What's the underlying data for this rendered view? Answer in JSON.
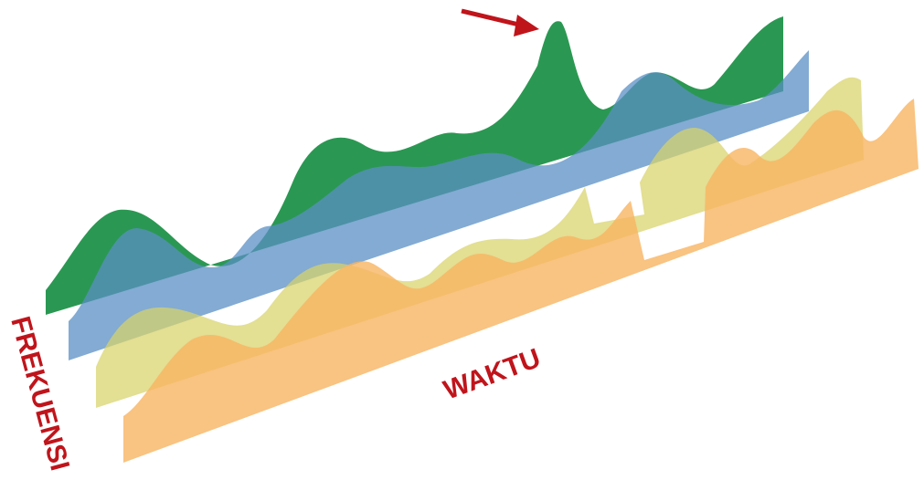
{
  "labels": {
    "frequency_axis": "FREKUENSI",
    "time_axis": "WAKTU"
  }
}
